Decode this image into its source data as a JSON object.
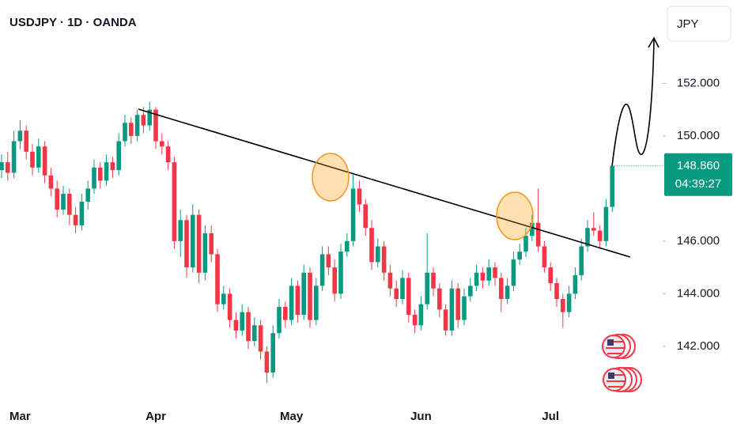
{
  "chart_data": {
    "type": "candlestick",
    "title": "USDJPY · 1D · OANDA",
    "currency": "JPY",
    "categories": [
      null,
      null,
      null,
      "Mar",
      null,
      null,
      null,
      null,
      null,
      null,
      null,
      null,
      null,
      null,
      null,
      null,
      null,
      null,
      null,
      null,
      null,
      null,
      null,
      null,
      null,
      "Apr",
      null,
      null,
      null,
      null,
      null,
      null,
      null,
      null,
      null,
      null,
      null,
      null,
      null,
      null,
      null,
      null,
      null,
      null,
      null,
      null,
      null,
      "May",
      null,
      null,
      null,
      null,
      null,
      null,
      null,
      null,
      null,
      null,
      null,
      null,
      null,
      null,
      null,
      null,
      null,
      null,
      null,
      null,
      "Jun",
      null,
      null,
      null,
      null,
      null,
      null,
      null,
      null,
      null,
      null,
      null,
      null,
      null,
      null,
      null,
      null,
      null,
      null,
      null,
      null,
      "Jul",
      null,
      null,
      null,
      null,
      null,
      null,
      null,
      null,
      null,
      null
    ],
    "open": [
      148.7,
      149.0,
      148.6,
      149.8,
      150.2,
      149.4,
      148.8,
      149.6,
      148.5,
      148.0,
      147.2,
      147.8,
      147.0,
      146.6,
      147.5,
      148.0,
      148.8,
      148.3,
      149.0,
      148.7,
      149.8,
      150.5,
      150.0,
      150.8,
      150.4,
      151.0,
      149.8,
      149.6,
      149.0,
      146.0,
      146.8,
      145.0,
      147.0,
      144.8,
      146.3,
      145.5,
      143.6,
      144.0,
      143.0,
      142.6,
      143.3,
      142.2,
      142.8,
      141.8,
      141.0,
      142.5,
      143.5,
      143.0,
      144.3,
      143.2,
      144.8,
      143.0,
      144.3,
      145.5,
      145.0,
      144.0,
      145.6,
      146.0,
      148.0,
      147.4,
      146.5,
      145.2,
      145.8,
      144.8,
      144.2,
      143.8,
      144.6,
      143.2,
      142.8,
      143.6,
      144.8,
      144.2,
      143.4,
      142.6,
      144.2,
      143.0,
      143.9,
      144.3,
      144.8,
      144.5,
      145.0,
      144.6,
      143.8,
      144.3,
      145.3,
      145.6,
      146.2,
      146.7,
      145.8,
      145.0,
      144.4,
      143.8,
      143.3,
      144.0,
      144.7,
      145.8,
      146.5,
      146.4,
      146.0,
      147.3
    ],
    "high": [
      149.3,
      149.4,
      150.2,
      150.6,
      150.4,
      149.7,
      149.9,
      149.8,
      148.8,
      148.3,
      148.1,
      148.0,
      147.3,
      147.8,
      148.3,
      149.1,
      149.0,
      149.3,
      149.2,
      150.1,
      150.8,
      150.7,
      151.0,
      151.1,
      151.3,
      151.1,
      150.1,
      149.8,
      149.2,
      147.2,
      147.0,
      147.4,
      147.2,
      146.6,
      146.6,
      145.7,
      144.3,
      144.2,
      143.3,
      143.6,
      143.5,
      143.1,
      143.0,
      142.0,
      142.8,
      143.8,
      143.7,
      144.6,
      144.5,
      145.1,
      145.0,
      144.6,
      145.8,
      145.8,
      145.3,
      145.9,
      146.3,
      148.6,
      148.3,
      147.6,
      146.8,
      146.1,
      146.0,
      145.1,
      144.5,
      144.9,
      144.8,
      143.4,
      143.9,
      146.3,
      145.0,
      144.4,
      143.6,
      144.5,
      144.4,
      144.2,
      144.6,
      145.1,
      145.0,
      145.3,
      145.2,
      144.8,
      144.6,
      145.6,
      145.9,
      146.5,
      147.0,
      148.0,
      146.0,
      145.2,
      144.6,
      144.0,
      144.3,
      145.0,
      146.1,
      146.8,
      147.1,
      146.6,
      147.6,
      148.9
    ],
    "low": [
      148.4,
      148.3,
      148.4,
      149.5,
      149.1,
      148.5,
      148.6,
      148.2,
      147.7,
      146.9,
      147.0,
      146.6,
      146.3,
      146.4,
      147.2,
      147.8,
      148.0,
      148.1,
      148.4,
      148.5,
      149.6,
      149.7,
      149.8,
      150.1,
      150.2,
      149.5,
      149.3,
      148.7,
      145.7,
      145.4,
      144.6,
      144.8,
      144.4,
      144.5,
      145.2,
      143.3,
      143.4,
      142.7,
      142.3,
      142.4,
      141.9,
      142.0,
      141.5,
      140.6,
      140.8,
      142.3,
      142.7,
      142.8,
      142.9,
      143.0,
      142.7,
      142.8,
      144.1,
      144.7,
      143.7,
      143.8,
      145.4,
      145.8,
      147.1,
      146.2,
      144.9,
      145.0,
      144.5,
      143.9,
      143.5,
      143.6,
      142.9,
      142.5,
      142.6,
      143.4,
      143.9,
      143.1,
      142.4,
      142.4,
      142.7,
      142.8,
      143.7,
      144.1,
      144.2,
      144.3,
      144.3,
      143.3,
      143.6,
      144.1,
      145.1,
      145.4,
      146.0,
      145.6,
      144.8,
      144.1,
      143.5,
      142.7,
      143.1,
      143.8,
      144.5,
      145.6,
      146.2,
      145.7,
      145.8,
      147.1
    ],
    "close": [
      149.0,
      148.6,
      149.8,
      150.2,
      149.4,
      148.8,
      149.6,
      148.5,
      148.0,
      147.2,
      147.8,
      147.0,
      146.6,
      147.5,
      148.0,
      148.8,
      148.3,
      149.0,
      148.7,
      149.8,
      150.5,
      150.0,
      150.8,
      150.4,
      151.0,
      149.8,
      149.6,
      149.0,
      146.0,
      146.8,
      145.0,
      147.0,
      144.8,
      146.3,
      145.5,
      143.6,
      144.0,
      143.0,
      142.6,
      143.3,
      142.2,
      142.8,
      141.8,
      141.0,
      142.5,
      143.5,
      143.0,
      144.3,
      143.2,
      144.8,
      143.0,
      144.3,
      145.5,
      145.0,
      144.0,
      145.6,
      146.0,
      148.0,
      147.4,
      146.5,
      145.2,
      145.8,
      144.8,
      144.2,
      143.8,
      144.6,
      143.2,
      142.8,
      143.6,
      144.8,
      144.2,
      143.4,
      142.6,
      144.2,
      143.0,
      143.9,
      144.3,
      144.8,
      144.5,
      145.0,
      144.6,
      143.8,
      144.3,
      145.3,
      145.6,
      146.2,
      146.7,
      145.8,
      145.0,
      144.4,
      143.8,
      143.3,
      144.0,
      144.7,
      145.8,
      146.5,
      146.4,
      146.0,
      147.3,
      148.86
    ],
    "up_color": "#089981",
    "down_color": "#f23645",
    "ylim": [
      139.83,
      155.17
    ],
    "yticks": [
      {
        "value": 142,
        "label": "142.000"
      },
      {
        "value": 144,
        "label": "144.000"
      },
      {
        "value": 146,
        "label": "146.000"
      },
      {
        "value": 150,
        "label": "150.000"
      },
      {
        "value": 152,
        "label": "152.000"
      }
    ],
    "grid": false,
    "last_price": {
      "value": 148.86,
      "label": "148.860"
    },
    "countdown": "04:39:27"
  }
}
